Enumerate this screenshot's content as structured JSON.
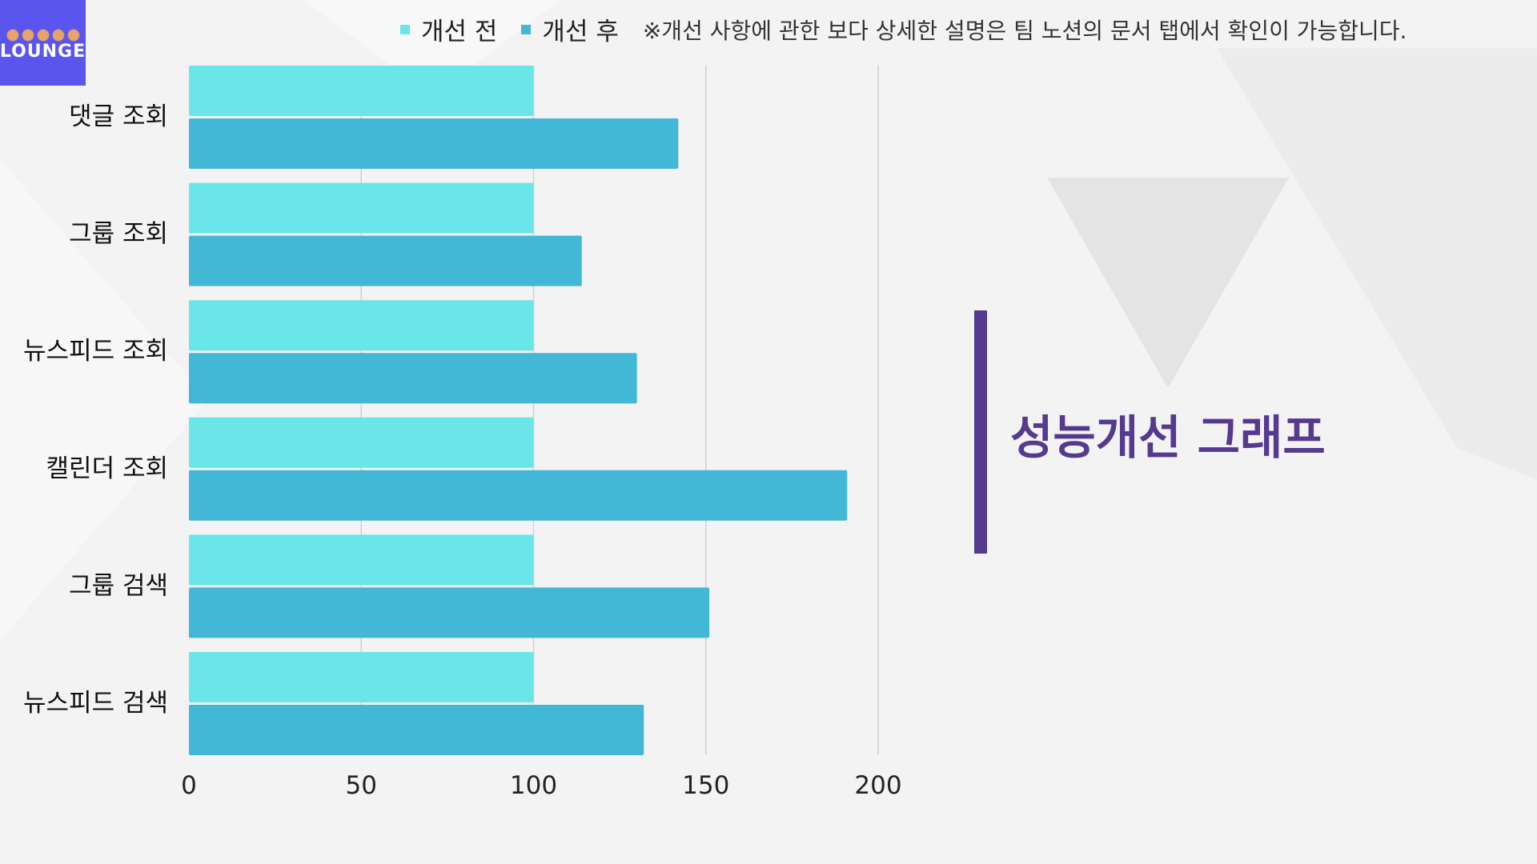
{
  "logo": {
    "text": "LOUNGE"
  },
  "legend": {
    "note": "※개선 사항에 관한 보다 상세한 설명은 팀 노션의 문서 탭에서 확인이 가능합니다."
  },
  "title": "성능개선 그래프",
  "chart_data": {
    "type": "bar",
    "orientation": "horizontal",
    "categories": [
      "댓글 조회",
      "그룹 조회",
      "뉴스피드 조회",
      "캘린더 조회",
      "그룹 검색",
      "뉴스피드 검색"
    ],
    "series": [
      {
        "name": "개선 전",
        "color": "#6ae5e8",
        "values": [
          100,
          100,
          100,
          100,
          100,
          100
        ]
      },
      {
        "name": "개선 후",
        "color": "#42b7d6",
        "values": [
          142,
          114,
          130,
          191,
          151,
          132
        ]
      }
    ],
    "xlim": [
      0,
      200
    ],
    "xticks": [
      "0",
      "50",
      "100",
      "150",
      "200"
    ],
    "grid": true,
    "legend_position": "top"
  }
}
